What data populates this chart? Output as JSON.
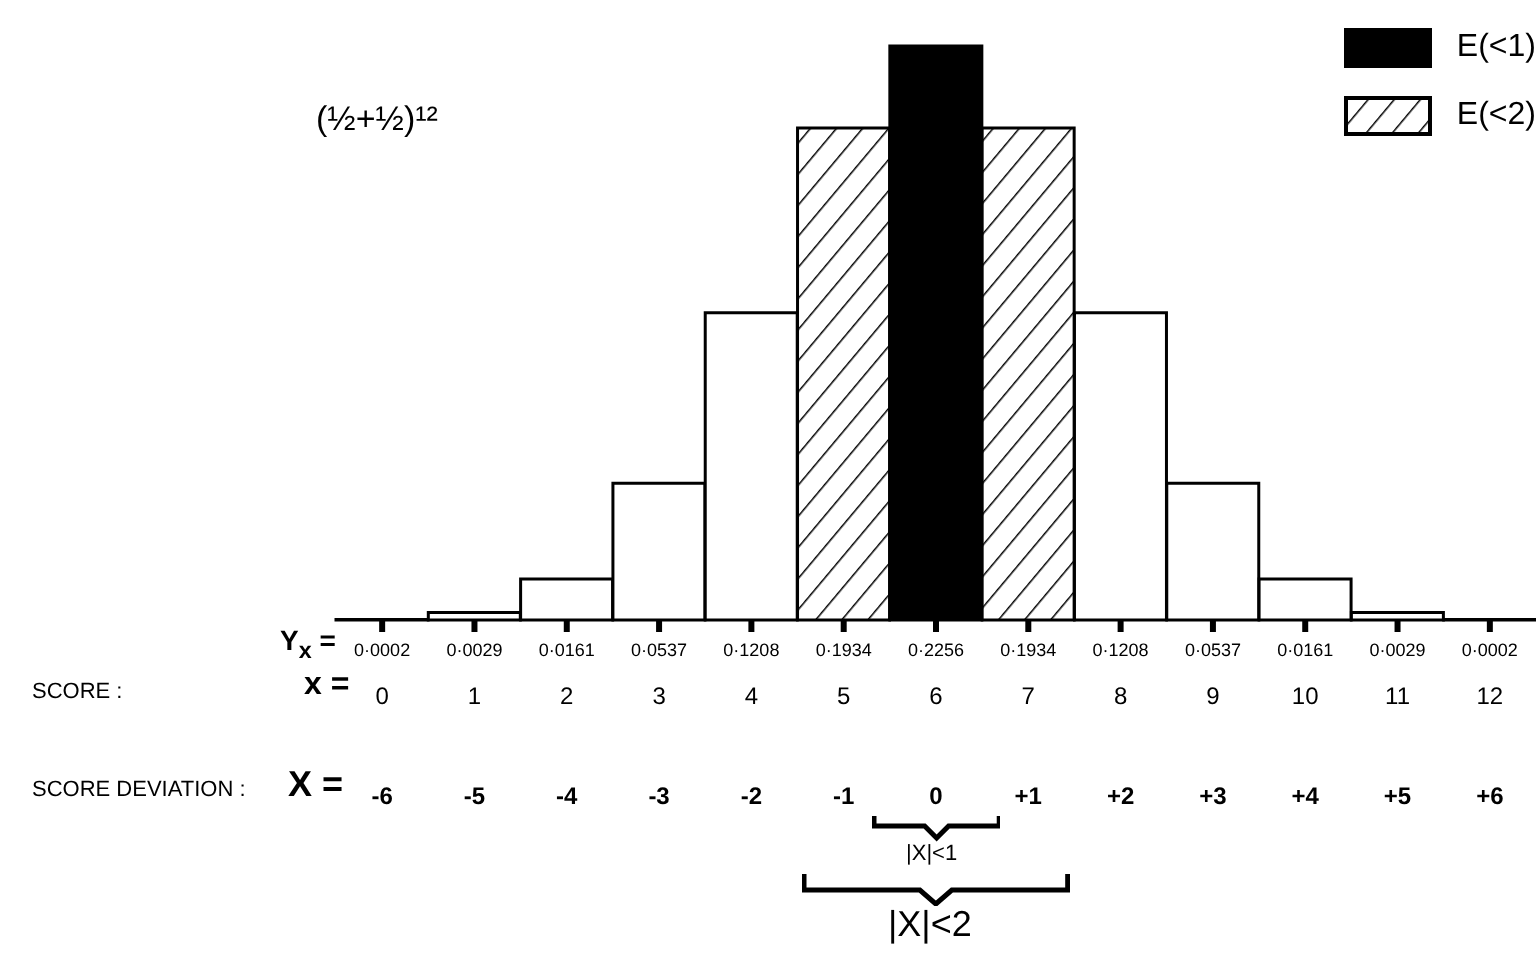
{
  "chart_data": {
    "type": "bar",
    "title": "(½+½)¹²",
    "stacked": true,
    "legend": "top right",
    "categories": [
      "0",
      "1",
      "2",
      "3",
      "4",
      "5",
      "6",
      "7",
      "8",
      "9",
      "10",
      "11",
      "12"
    ],
    "series": [
      {
        "name": "E(<1)",
        "color": "#000000",
        "values": [
          null,
          null,
          null,
          null,
          null,
          null,
          0.2256,
          null,
          null,
          null,
          null,
          null,
          null
        ],
        "value_labels": [
          null,
          null,
          null,
          null,
          null,
          null,
          "0·2256",
          null,
          null,
          null,
          null,
          null,
          null
        ]
      },
      {
        "name": "E(<2)",
        "color": "#000000",
        "values": [
          null,
          null,
          null,
          null,
          null,
          0.1934,
          null,
          0.1934,
          null,
          null,
          null,
          null,
          null
        ],
        "value_labels": [
          null,
          null,
          null,
          null,
          null,
          "0·1934",
          null,
          "0·1934",
          null,
          null,
          null,
          null,
          null
        ]
      },
      {
        "color": "#ffffff",
        "values": [
          0.0002,
          0.0029,
          0.0161,
          0.0537,
          0.1208,
          null,
          null,
          null,
          0.1208,
          0.0537,
          0.0161,
          0.0029,
          0.0002
        ],
        "value_labels": [
          "0·0002",
          "0·0029",
          "0·0161",
          "0·0537",
          "0·1208",
          null,
          null,
          null,
          "0·1208",
          "0·0537",
          "0·0161",
          "0·0029",
          "0·0002"
        ]
      }
    ],
    "annotations": [
      "SCORE :",
      "x =",
      "SCORE DEVIATION :",
      "X =",
      "|X|<1",
      "|X|<2",
      "Y$_{x}$ =",
      "-6",
      "-5",
      "-4",
      "-3",
      "-2",
      "-1",
      "0",
      "+1",
      "+2",
      "+3",
      "+4",
      "+5",
      "+6"
    ]
  }
}
